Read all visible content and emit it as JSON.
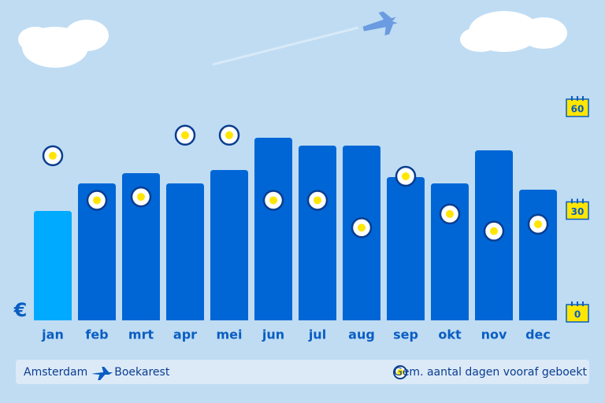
{
  "chart_data": {
    "type": "bar",
    "y_label": "€",
    "categories": [
      "jan",
      "feb",
      "mrt",
      "apr",
      "mei",
      "jun",
      "jul",
      "aug",
      "sep",
      "okt",
      "nov",
      "dec"
    ],
    "values": [
      139,
      174,
      187,
      174,
      191,
      232,
      222,
      222,
      182,
      174,
      216,
      166
    ],
    "bar_colors": [
      "#00aaff",
      "#0066d6",
      "#0066d6",
      "#0066d6",
      "#0066d6",
      "#0066d6",
      "#0066d6",
      "#0066d6",
      "#0066d6",
      "#0066d6",
      "#0066d6",
      "#0066d6"
    ],
    "ylim": [
      0,
      250
    ],
    "dots": {
      "name": "Gem. aantal dagen vooraf geboekt",
      "axis": "y2",
      "color": "#ffe600",
      "values": [
        46,
        33,
        34,
        52,
        52,
        33,
        33,
        25,
        40,
        29,
        24,
        26
      ]
    },
    "y2lim": [
      0,
      60
    ],
    "y2ticks": [
      0,
      30,
      60
    ],
    "route": {
      "from": "Amsterdam",
      "to": "Boekarest"
    }
  }
}
